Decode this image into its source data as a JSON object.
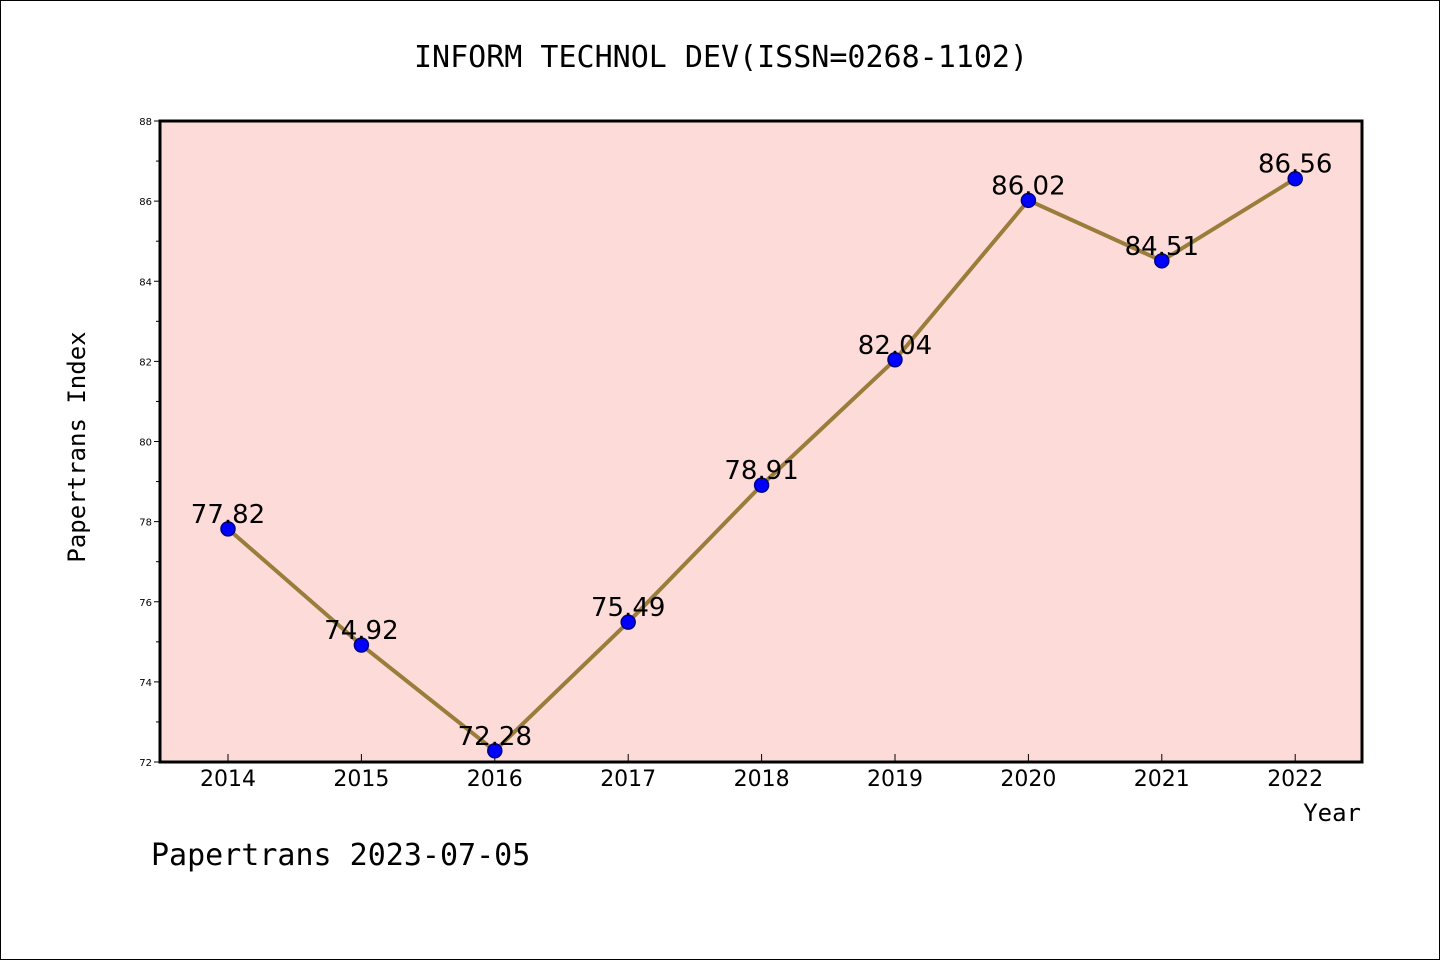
{
  "footer": "Papertrans 2023-07-05",
  "colors": {
    "plot_background": "#fddbd8",
    "line": "#9a7d3a",
    "marker": "#0000ff",
    "marker_edge": "#000080"
  },
  "chart_data": {
    "type": "line",
    "title": "INFORM TECHNOL DEV(ISSN=0268-1102)",
    "xlabel": "Year",
    "ylabel": "Papertrans Index",
    "categories": [
      "2014",
      "2015",
      "2016",
      "2017",
      "2018",
      "2019",
      "2020",
      "2021",
      "2022"
    ],
    "series": [
      {
        "values": [
          77.82,
          74.92,
          72.28,
          75.49,
          78.91,
          82.04,
          86.02,
          84.51,
          86.56
        ],
        "labels": [
          "77.82",
          "74.92",
          "72.28",
          "75.49",
          "78.91",
          "82.04",
          "86.02",
          "84.51",
          "86.56"
        ]
      }
    ],
    "ylim": [
      72,
      88
    ],
    "yticks": [
      "72",
      "74",
      "76",
      "78",
      "80",
      "82",
      "84",
      "86",
      "88"
    ],
    "grid": false,
    "legend": "none"
  }
}
